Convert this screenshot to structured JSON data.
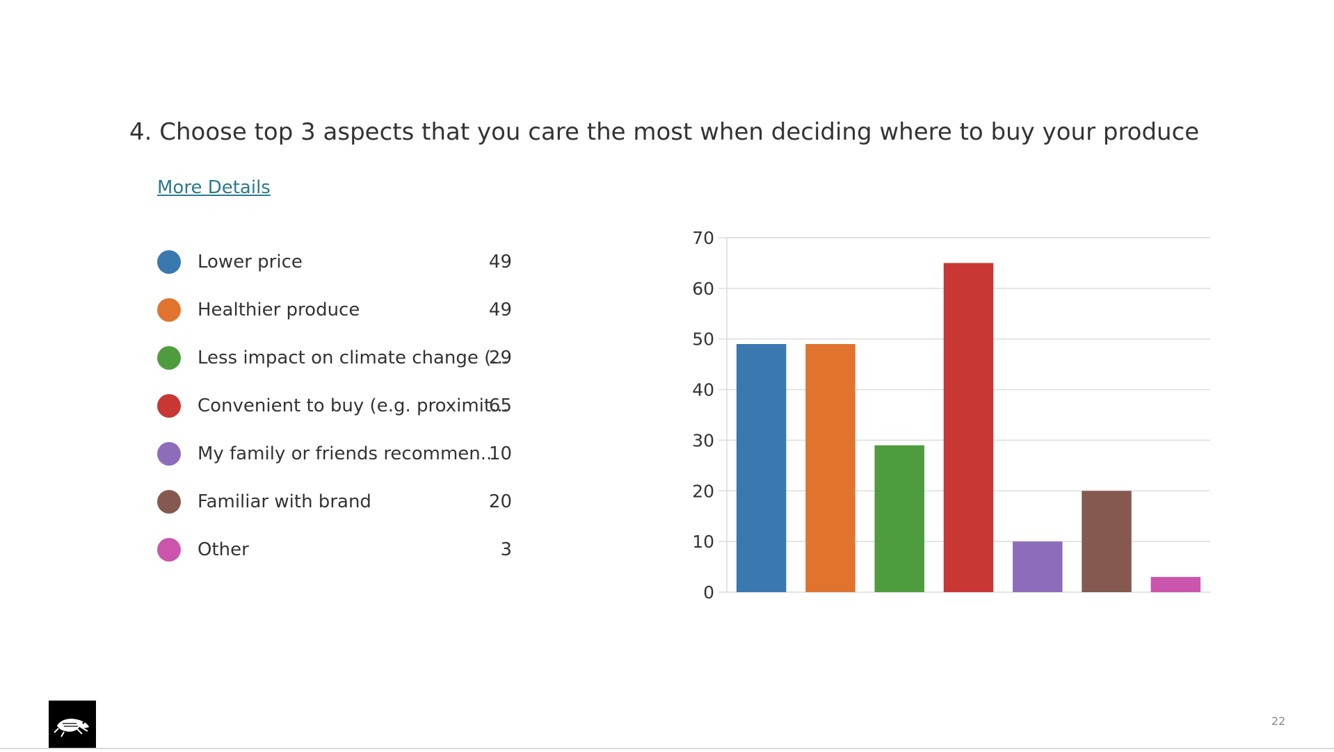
{
  "slide": {
    "title": "4.  Choose top 3 aspects that you care the most when deciding where to buy your produce",
    "more_details_link": "More Details",
    "page_number": "22"
  },
  "legend": [
    {
      "label": "Lower price",
      "count": "49",
      "color": "#3a78b0"
    },
    {
      "label": "Healthier produce",
      "count": "49",
      "color": "#e0742f"
    },
    {
      "label": "Less impact on climate change (...",
      "count": "29",
      "color": "#4f9c3f"
    },
    {
      "label": "Convenient to buy (e.g. proximit...",
      "count": "65",
      "color": "#c83733"
    },
    {
      "label": "My family or friends recommen...",
      "count": "10",
      "color": "#8d6cbc"
    },
    {
      "label": "Familiar with brand",
      "count": "20",
      "color": "#85594f"
    },
    {
      "label": "Other",
      "count": "3",
      "color": "#cb55ac"
    }
  ],
  "chart_data": {
    "type": "bar",
    "categories": [
      "Lower price",
      "Healthier produce",
      "Less impact on climate change (...",
      "Convenient to buy (e.g. proximit...",
      "My family or friends recommen...",
      "Familiar with brand",
      "Other"
    ],
    "values": [
      49,
      49,
      29,
      65,
      10,
      20,
      3
    ],
    "colors": [
      "#3a78b0",
      "#e0742f",
      "#4f9c3f",
      "#c83733",
      "#8d6cbc",
      "#85594f",
      "#cb55ac"
    ],
    "ylim": [
      0,
      70
    ],
    "yticks": [
      0,
      10,
      20,
      30,
      40,
      50,
      60,
      70
    ],
    "grid": true,
    "legend": "left"
  },
  "icons": {
    "logo": "frog-logo-icon"
  }
}
